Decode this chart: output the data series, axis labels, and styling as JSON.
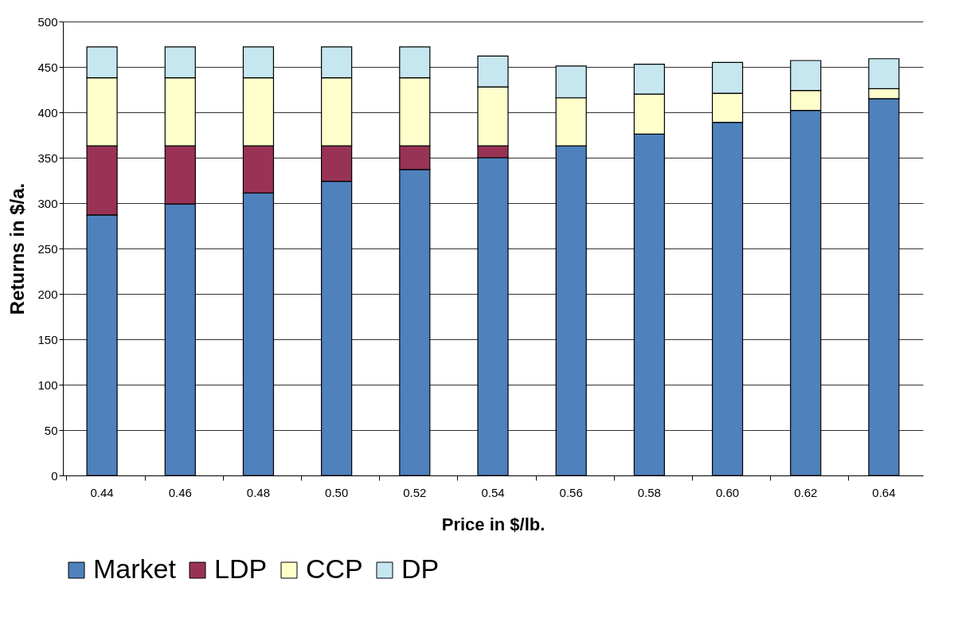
{
  "chart_data": {
    "type": "bar",
    "stacked": true,
    "xlabel": "Price in $/lb.",
    "ylabel": "Returns in $/a.",
    "categories": [
      "0.44",
      "0.46",
      "0.48",
      "0.50",
      "0.52",
      "0.54",
      "0.56",
      "0.58",
      "0.60",
      "0.62",
      "0.64"
    ],
    "series": [
      {
        "name": "Market",
        "color": "#4f81bd",
        "values": [
          287,
          299,
          311,
          324,
          337,
          350,
          363,
          376,
          389,
          402,
          415
        ]
      },
      {
        "name": "LDP",
        "color": "#993355",
        "values": [
          76,
          64,
          52,
          39,
          26,
          13,
          null,
          null,
          null,
          null,
          null
        ]
      },
      {
        "name": "CCP",
        "color": "#ffffcc",
        "values": [
          75,
          75,
          75,
          75,
          75,
          65,
          53,
          44,
          32,
          22,
          11
        ]
      },
      {
        "name": "DP",
        "color": "#c6e6f0",
        "values": [
          34,
          34,
          34,
          34,
          34,
          34,
          35,
          33,
          34,
          33,
          33
        ]
      }
    ],
    "ylim": [
      0,
      500
    ],
    "yticks": [
      0,
      50,
      100,
      150,
      200,
      250,
      300,
      350,
      400,
      450,
      500
    ],
    "grid": "y",
    "legend": "bottom"
  }
}
